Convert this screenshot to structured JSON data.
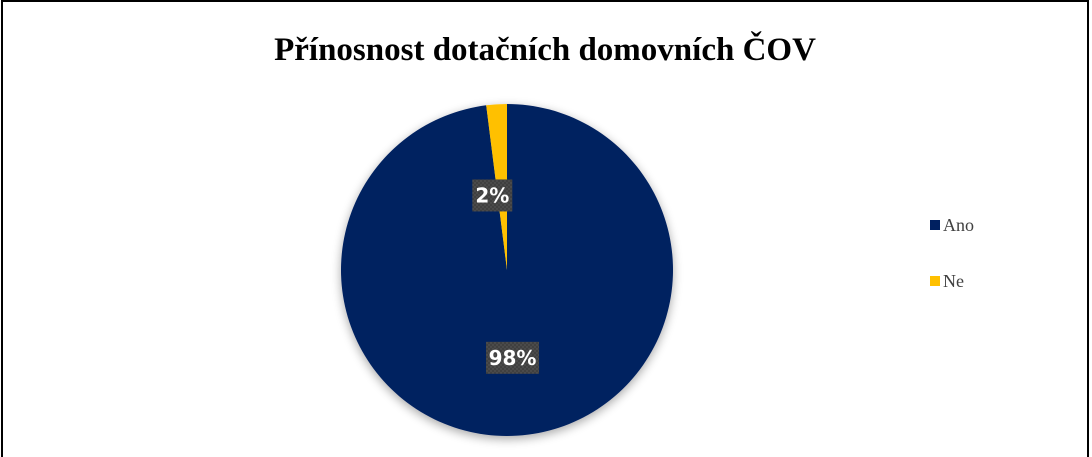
{
  "chart_data": {
    "type": "pie",
    "title": "Přínosnost dotačních domovních ČOV",
    "categories": [
      "Ano",
      "Ne"
    ],
    "values": [
      98,
      2
    ],
    "data_labels": [
      "98%",
      "2%"
    ],
    "colors": [
      "#002060",
      "#FFC000"
    ],
    "legend_position": "right"
  },
  "colors": {
    "label_background": "#404040",
    "label_text": "#ffffff"
  }
}
